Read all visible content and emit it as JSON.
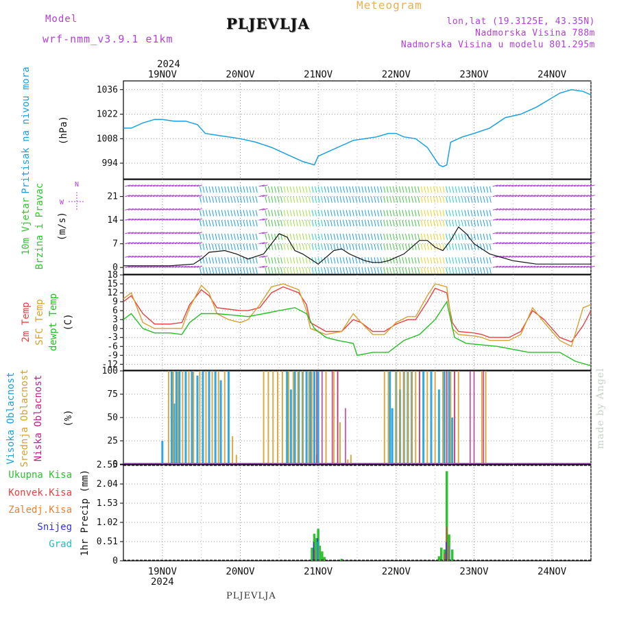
{
  "header": {
    "model_label": "Model",
    "model_value": "wrf-nmm_v3.9.1 e1km",
    "site": "PLJEVLJA",
    "meteogram": "Meteogram",
    "coords": "lon,lat (19.3125E, 43.35N)",
    "elevation": "Nadmorska Visina 788m",
    "elevation_model": "Nadmorska Visina u modelu 801.295m"
  },
  "footer": {
    "site": "PLJEVLJA",
    "watermark": "made by Angel"
  },
  "colors": {
    "pressure": "#1aa0e0",
    "wind_green": "#2ec82e",
    "temp2m": "#e84040",
    "sfc": "#d8a030",
    "dewpt": "#20c020",
    "high_cloud": "#1aa0e0",
    "mid_cloud": "#d8a030",
    "low_cloud": "#c0208c",
    "total_precip": "#30c030",
    "conv_precip": "#e84040",
    "frozen_precip": "#f08030",
    "snow": "#3030e0",
    "hail": "#20c0c0",
    "purple": "#b040d8"
  },
  "time_axis": {
    "year": "2024",
    "dates": [
      "19NOV",
      "20NOV",
      "21NOV",
      "22NOV",
      "23NOV",
      "24NOV"
    ],
    "start_day": 18.5,
    "end_day": 24.5
  },
  "chart_data": [
    {
      "type": "line",
      "panel": "pressure",
      "ylabel_lines": [
        "Pritisak na nivou mora"
      ],
      "unit": "(hPa)",
      "yticks": [
        994,
        1008,
        1022,
        1036
      ],
      "ylim": [
        985,
        1041
      ],
      "series": [
        {
          "x": [
            18.5,
            18.6,
            18.75,
            18.9,
            19.0,
            19.15,
            19.3,
            19.45,
            19.55,
            19.7,
            19.85,
            20.0,
            20.2,
            20.4,
            20.6,
            20.8,
            20.95,
            21.0,
            21.15,
            21.3,
            21.45,
            21.6,
            21.75,
            21.9,
            22.0,
            22.1,
            22.25,
            22.4,
            22.55,
            22.6,
            22.65,
            22.7,
            22.85,
            23.0,
            23.2,
            23.4,
            23.6,
            23.8,
            23.95,
            24.1,
            24.25,
            24.4,
            24.5
          ],
          "values": [
            1014,
            1014,
            1017,
            1019,
            1019,
            1018,
            1018,
            1016,
            1011,
            1010,
            1009,
            1008,
            1006,
            1003,
            999,
            995,
            993,
            998,
            1001,
            1004,
            1007,
            1008,
            1009,
            1011,
            1011,
            1009,
            1008,
            1003,
            993,
            992,
            993,
            1006,
            1009,
            1011,
            1014,
            1020,
            1022,
            1026,
            1030,
            1034,
            1036,
            1035,
            1033
          ]
        }
      ]
    },
    {
      "type": "line",
      "panel": "wind",
      "ylabel_lines": [
        "10m Vjetar",
        "Brzina i Pravac"
      ],
      "unit": "(m/s)",
      "compass": {
        "north": "N",
        "west": "W"
      },
      "yticks": [
        0,
        7,
        14,
        21
      ],
      "ylim": [
        -2,
        26
      ],
      "series": [
        {
          "name": "speed",
          "x": [
            18.5,
            18.8,
            19.1,
            19.4,
            19.5,
            19.6,
            19.8,
            19.95,
            20.1,
            20.3,
            20.4,
            20.5,
            20.6,
            20.7,
            20.8,
            20.9,
            21.0,
            21.1,
            21.2,
            21.3,
            21.4,
            21.5,
            21.6,
            21.7,
            21.8,
            21.9,
            22.0,
            22.1,
            22.2,
            22.3,
            22.4,
            22.5,
            22.6,
            22.7,
            22.8,
            22.9,
            23.0,
            23.2,
            23.5,
            23.8,
            24.1,
            24.5
          ],
          "values": [
            0.5,
            0.5,
            0.5,
            1,
            2.5,
            4.5,
            5,
            4,
            2.5,
            4,
            7,
            10,
            9,
            5,
            4,
            2.5,
            1,
            3,
            5,
            5.5,
            4,
            3,
            2,
            1.5,
            1.5,
            2,
            3,
            4,
            6,
            8,
            8,
            6,
            5,
            8,
            12,
            10,
            7,
            4,
            2,
            1,
            1,
            1
          ]
        }
      ],
      "barb_colors": [
        "#b040d8",
        "#1aa0e0",
        "#20d0c0",
        "#40c840",
        "#a0e040",
        "#f0d020"
      ]
    },
    {
      "type": "line",
      "panel": "temperature",
      "ylabel_lines": [
        "2m Temp",
        "SFC Temp",
        "dewpt Temp"
      ],
      "unit": "(C)",
      "yticks": [
        -12,
        -9,
        -6,
        -3,
        0,
        3,
        6,
        9,
        12,
        15,
        18
      ],
      "ylim": [
        -14,
        18
      ],
      "series": [
        {
          "name": "2m Temp",
          "x": [
            18.5,
            18.6,
            18.75,
            18.9,
            19.1,
            19.25,
            19.35,
            19.5,
            19.6,
            19.7,
            19.85,
            20.0,
            20.1,
            20.25,
            20.4,
            20.55,
            20.75,
            20.85,
            20.9,
            21.1,
            21.3,
            21.45,
            21.55,
            21.7,
            21.85,
            22.0,
            22.15,
            22.25,
            22.4,
            22.5,
            22.65,
            22.72,
            22.8,
            23.0,
            23.1,
            23.2,
            23.45,
            23.6,
            23.75,
            23.9,
            24.1,
            24.25,
            24.4,
            24.5
          ],
          "values": [
            9,
            11,
            5,
            1.5,
            1.5,
            2,
            8,
            13,
            11,
            7,
            6.5,
            6,
            6,
            7,
            12,
            14,
            12,
            8,
            2,
            -1,
            -1,
            3,
            2,
            -1,
            -1,
            1.5,
            3,
            3,
            9,
            13.5,
            12,
            2,
            -1,
            -1.5,
            -2,
            -3,
            -3,
            -1,
            6,
            3,
            -3,
            -4.5,
            1,
            6
          ]
        },
        {
          "name": "SFC Temp",
          "x": [
            18.5,
            18.6,
            18.75,
            18.9,
            19.1,
            19.25,
            19.35,
            19.5,
            19.6,
            19.7,
            19.85,
            20.0,
            20.1,
            20.25,
            20.4,
            20.55,
            20.75,
            20.85,
            20.9,
            21.1,
            21.3,
            21.45,
            21.55,
            21.7,
            21.85,
            22.0,
            22.15,
            22.25,
            22.4,
            22.5,
            22.65,
            22.72,
            22.8,
            23.0,
            23.1,
            23.2,
            23.45,
            23.6,
            23.75,
            23.9,
            24.1,
            24.25,
            24.4,
            24.5
          ],
          "values": [
            10,
            12,
            2,
            0,
            0,
            0,
            7,
            14.5,
            12,
            5,
            3,
            2,
            3,
            8,
            14,
            15,
            13,
            6,
            0,
            -2,
            -1,
            5,
            2,
            -2,
            -2,
            2,
            4,
            4,
            11,
            15,
            14,
            0,
            -2,
            -2.5,
            -3,
            -4,
            -4,
            -2,
            7,
            2,
            -4,
            -6,
            7,
            8
          ]
        },
        {
          "name": "dewpt Temp",
          "x": [
            18.5,
            18.6,
            18.75,
            18.9,
            19.1,
            19.25,
            19.35,
            19.5,
            19.6,
            19.7,
            19.9,
            20.1,
            20.3,
            20.5,
            20.7,
            20.85,
            20.95,
            21.1,
            21.25,
            21.45,
            21.5,
            21.7,
            21.9,
            22.1,
            22.3,
            22.5,
            22.65,
            22.75,
            22.9,
            23.1,
            23.3,
            23.5,
            23.7,
            23.9,
            24.1,
            24.3,
            24.5
          ],
          "values": [
            3,
            5,
            0,
            -1.5,
            -1.5,
            -2,
            2,
            5,
            5,
            5,
            4.5,
            4,
            5,
            6,
            7,
            5,
            0,
            -3,
            -4,
            -5,
            -9,
            -8,
            -8,
            -4,
            -2,
            3,
            9,
            -3,
            -5,
            -5.5,
            -6,
            -7,
            -8,
            -8,
            -8,
            -11,
            -12.5
          ]
        }
      ]
    },
    {
      "type": "bar",
      "panel": "clouds",
      "ylabel_lines": [
        "Visoka Oblacnost",
        "Srednja Oblacnost",
        "Niska Oblacnost"
      ],
      "unit": "(%)",
      "yticks": [
        0,
        25,
        50,
        75,
        100
      ],
      "ylim": [
        0,
        100
      ],
      "series": [
        {
          "name": "Visoka Oblacnost",
          "ranges": [
            [
              18.5,
              18.5,
              0
            ],
            [
              18.5,
              19.05,
              25
            ],
            [
              19.1,
              19.9,
              100
            ],
            [
              20.55,
              21.02,
              100
            ],
            [
              21.9,
              22.75,
              100
            ],
            [
              22.75,
              24.5,
              0
            ]
          ],
          "values_note": ""
        }
      ],
      "high_blocks": [
        [
          19.0,
          25
        ],
        [
          19.12,
          100
        ],
        [
          19.15,
          65
        ],
        [
          19.18,
          100
        ],
        [
          19.22,
          100
        ],
        [
          19.3,
          100
        ],
        [
          19.38,
          100
        ],
        [
          19.45,
          95
        ],
        [
          19.52,
          100
        ],
        [
          19.6,
          100
        ],
        [
          19.68,
          100
        ],
        [
          19.75,
          90
        ],
        [
          19.85,
          100
        ],
        [
          20.6,
          100
        ],
        [
          20.65,
          80
        ],
        [
          20.7,
          100
        ],
        [
          20.75,
          100
        ],
        [
          20.8,
          100
        ],
        [
          20.85,
          100
        ],
        [
          20.9,
          100
        ],
        [
          20.95,
          100
        ],
        [
          21.0,
          100
        ],
        [
          21.92,
          100
        ],
        [
          21.95,
          60
        ],
        [
          22.0,
          100
        ],
        [
          22.05,
          80
        ],
        [
          22.1,
          100
        ],
        [
          22.15,
          100
        ],
        [
          22.2,
          100
        ],
        [
          22.35,
          100
        ],
        [
          22.45,
          100
        ],
        [
          22.55,
          80
        ],
        [
          22.62,
          100
        ],
        [
          22.68,
          100
        ],
        [
          22.72,
          50
        ]
      ],
      "mid_blocks": [
        [
          19.08,
          100
        ],
        [
          19.14,
          100
        ],
        [
          19.2,
          100
        ],
        [
          19.26,
          100
        ],
        [
          19.34,
          100
        ],
        [
          19.4,
          100
        ],
        [
          19.48,
          100
        ],
        [
          19.56,
          100
        ],
        [
          19.64,
          100
        ],
        [
          19.72,
          100
        ],
        [
          19.8,
          100
        ],
        [
          19.9,
          30
        ],
        [
          19.95,
          10
        ],
        [
          20.3,
          100
        ],
        [
          20.36,
          100
        ],
        [
          20.42,
          100
        ],
        [
          20.48,
          100
        ],
        [
          20.54,
          100
        ],
        [
          20.62,
          100
        ],
        [
          20.68,
          100
        ],
        [
          20.74,
          100
        ],
        [
          20.8,
          100
        ],
        [
          20.88,
          100
        ],
        [
          20.92,
          100
        ],
        [
          20.98,
          10
        ],
        [
          21.1,
          100
        ],
        [
          21.2,
          100
        ],
        [
          21.25,
          100
        ],
        [
          21.28,
          45
        ],
        [
          21.38,
          5
        ],
        [
          21.42,
          10
        ],
        [
          21.85,
          100
        ],
        [
          21.9,
          100
        ],
        [
          22.0,
          100
        ],
        [
          22.05,
          100
        ],
        [
          22.1,
          100
        ],
        [
          22.15,
          100
        ],
        [
          22.2,
          100
        ],
        [
          22.25,
          100
        ],
        [
          22.3,
          100
        ],
        [
          22.4,
          100
        ],
        [
          22.5,
          100
        ],
        [
          22.6,
          100
        ],
        [
          22.65,
          100
        ],
        [
          22.7,
          100
        ],
        [
          22.75,
          100
        ],
        [
          22.8,
          100
        ],
        [
          23.1,
          100
        ],
        [
          23.15,
          100
        ]
      ],
      "low_blocks": [
        [
          20.98,
          100
        ],
        [
          21.05,
          100
        ],
        [
          21.18,
          100
        ],
        [
          21.25,
          100
        ],
        [
          21.35,
          60
        ],
        [
          22.3,
          100
        ],
        [
          22.65,
          100
        ],
        [
          22.75,
          100
        ],
        [
          22.95,
          100
        ],
        [
          23.0,
          100
        ],
        [
          23.12,
          100
        ]
      ]
    },
    {
      "type": "bar",
      "panel": "precip",
      "ylabel_lines": [
        "1hr Precip (mm)"
      ],
      "legend": [
        "Ukupna Kisa",
        "Konvek.Kisa",
        "Zaledj.Kisa",
        "Snijeg",
        "Grad"
      ],
      "yticks": [
        0,
        0.51,
        1.02,
        1.53,
        2.04,
        2.55
      ],
      "ylim": [
        0,
        2.55
      ],
      "total": {
        "x": [
          20.92,
          20.95,
          20.98,
          21.0,
          21.02,
          21.05,
          21.08,
          21.3,
          22.55,
          22.58,
          22.62,
          22.65,
          22.68,
          22.72
        ],
        "values": [
          0.35,
          0.72,
          0.6,
          0.85,
          0.4,
          0.25,
          0.1,
          0.05,
          0.12,
          0.35,
          0.3,
          2.38,
          0.7,
          0.3
        ]
      },
      "conv": {
        "x": [
          20.95,
          21.0,
          22.62,
          22.65,
          22.68
        ],
        "values": [
          0.3,
          0.4,
          0.2,
          0.9,
          0.4
        ]
      },
      "snow": {
        "x": [
          20.95,
          21.0,
          22.65
        ],
        "values": [
          0.5,
          0.6,
          0.5
        ]
      },
      "hail": {
        "x": [
          20.98,
          21.0,
          22.68
        ],
        "values": [
          0.5,
          0.55,
          0.4
        ]
      }
    }
  ]
}
